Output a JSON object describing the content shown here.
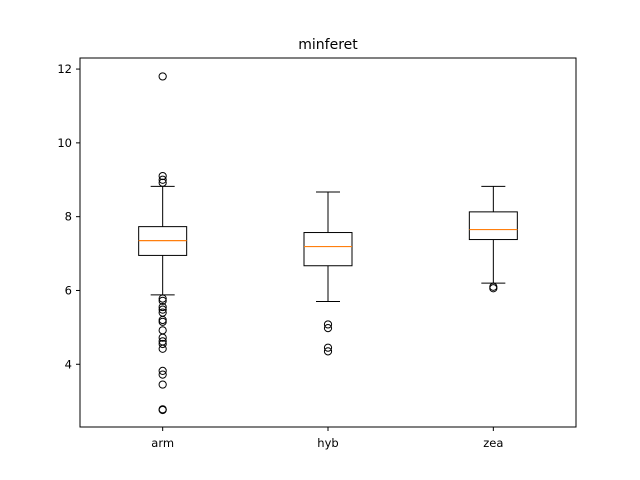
{
  "chart_data": {
    "type": "box",
    "title": "minferet",
    "xlabel": "",
    "ylabel": "",
    "categories": [
      "arm",
      "hyb",
      "zea"
    ],
    "ylim": [
      2.3,
      12.3
    ],
    "yticks": [
      4,
      6,
      8,
      10,
      12
    ],
    "ytick_labels": [
      "4",
      "6",
      "8",
      "10",
      "12"
    ],
    "grid": false,
    "boxes": [
      {
        "name": "arm",
        "whisker_low": 5.88,
        "q1": 6.95,
        "median": 7.35,
        "q3": 7.73,
        "whisker_high": 8.82,
        "outliers": [
          11.8,
          9.1,
          9.0,
          8.92,
          5.78,
          5.72,
          5.55,
          5.48,
          5.4,
          5.2,
          5.15,
          4.92,
          4.72,
          4.62,
          4.55,
          4.42,
          3.82,
          3.72,
          3.45,
          2.78,
          2.76
        ]
      },
      {
        "name": "hyb",
        "whisker_low": 5.7,
        "q1": 6.67,
        "median": 7.19,
        "q3": 7.57,
        "whisker_high": 8.67,
        "outliers": [
          5.08,
          4.98,
          4.45,
          4.35
        ]
      },
      {
        "name": "zea",
        "whisker_low": 6.2,
        "q1": 7.38,
        "median": 7.65,
        "q3": 8.13,
        "whisker_high": 8.82,
        "outliers": [
          6.1,
          6.06
        ]
      }
    ],
    "colors": {
      "box": "#000000",
      "median": "#ff7f0e",
      "outlier": "#000000"
    }
  }
}
